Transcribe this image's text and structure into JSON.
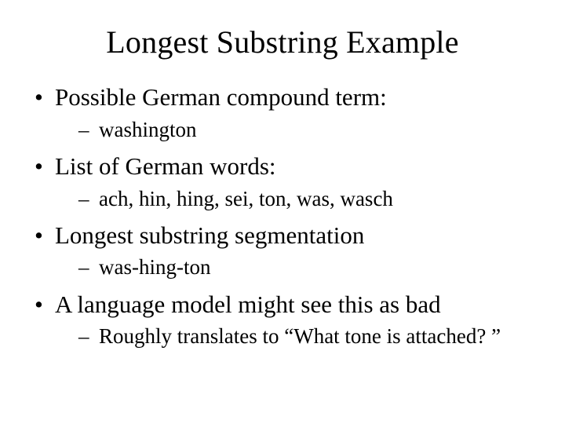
{
  "slide": {
    "title": "Longest Substring Example",
    "title_fontsize": 40,
    "body_font_family": "Times New Roman",
    "background_color": "#ffffff",
    "text_color": "#000000",
    "bullets": [
      {
        "text": "Possible German compound term:",
        "sub": [
          {
            "text": "washington"
          }
        ]
      },
      {
        "text": "List of German words:",
        "sub": [
          {
            "text": "ach, hin, hing, sei, ton, was, wasch"
          }
        ]
      },
      {
        "text": "Longest substring segmentation",
        "sub": [
          {
            "text": "was-hing-ton"
          }
        ]
      },
      {
        "text": "A language model might see this as bad",
        "sub": [
          {
            "text": "Roughly translates to “What tone is attached? ”"
          }
        ]
      }
    ],
    "level1_fontsize": 31,
    "level2_fontsize": 27
  }
}
